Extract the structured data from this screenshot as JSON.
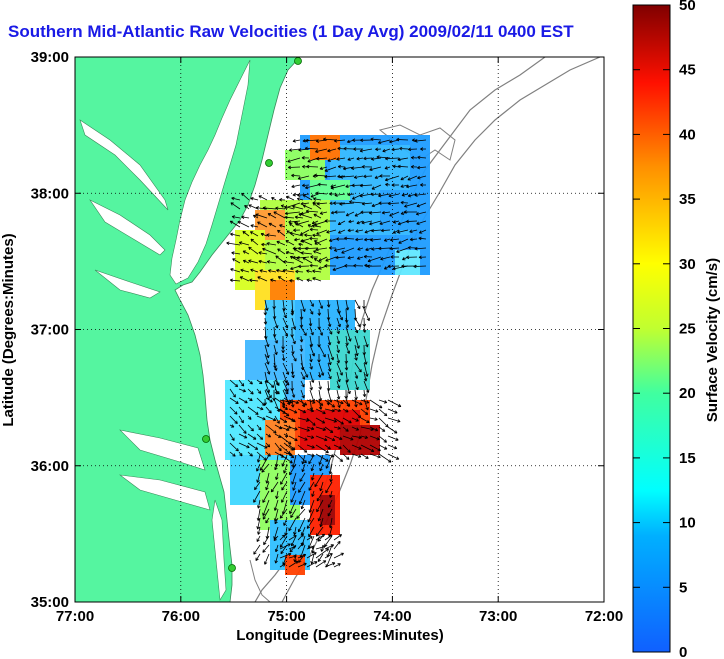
{
  "title": "Southern Mid-Atlantic Raw Velocities (1 Day Avg) 2009/02/11 0400 EST",
  "xlabel": "Longitude (Degrees:Minutes)",
  "ylabel": "Latitude (Degrees:Minutes)",
  "colorbar_label": "Surface Velocity (cm/s)",
  "x_ticks": [
    "77:00",
    "76:00",
    "75:00",
    "74:00",
    "73:00",
    "72:00"
  ],
  "y_ticks": [
    "39:00",
    "38:00",
    "37:00",
    "36:00",
    "35:00"
  ],
  "colorbar_ticks": [
    "0",
    "5",
    "10",
    "15",
    "20",
    "25",
    "30",
    "35",
    "40",
    "45",
    "50"
  ],
  "colors": {
    "land": "#55f5a0",
    "title": "#1a1ae6",
    "station": "#33cc33"
  },
  "chart_data": {
    "type": "heatmap",
    "subtype": "surface-current vector map",
    "x_range_deg_west": [
      77,
      72
    ],
    "y_range_deg_north": [
      35,
      39
    ],
    "color_range": [
      0,
      50
    ],
    "colormap": "jet",
    "grid": true
  }
}
